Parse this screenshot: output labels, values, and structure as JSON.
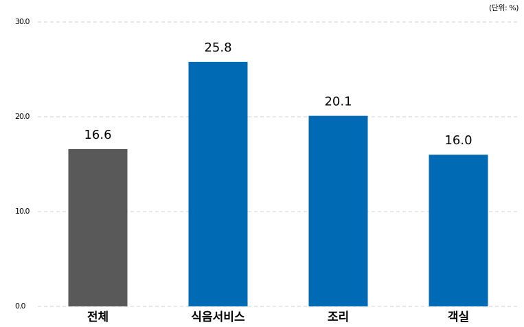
{
  "chart_data": {
    "type": "bar",
    "unit_label": "(단위: %)",
    "categories": [
      "전체",
      "식음서비스",
      "조리",
      "객실"
    ],
    "values": [
      16.6,
      25.8,
      20.1,
      16.0
    ],
    "value_labels": [
      "16.6",
      "25.8",
      "20.1",
      "16.0"
    ],
    "colors": [
      "#595959",
      "#006ab4",
      "#006ab4",
      "#006ab4"
    ],
    "ylim": [
      0,
      30
    ],
    "yticks": [
      {
        "value": 0,
        "label": "0.0"
      },
      {
        "value": 10,
        "label": "10.0"
      },
      {
        "value": 20,
        "label": "20.0"
      },
      {
        "value": 30,
        "label": "30.0"
      }
    ],
    "grid": true
  }
}
